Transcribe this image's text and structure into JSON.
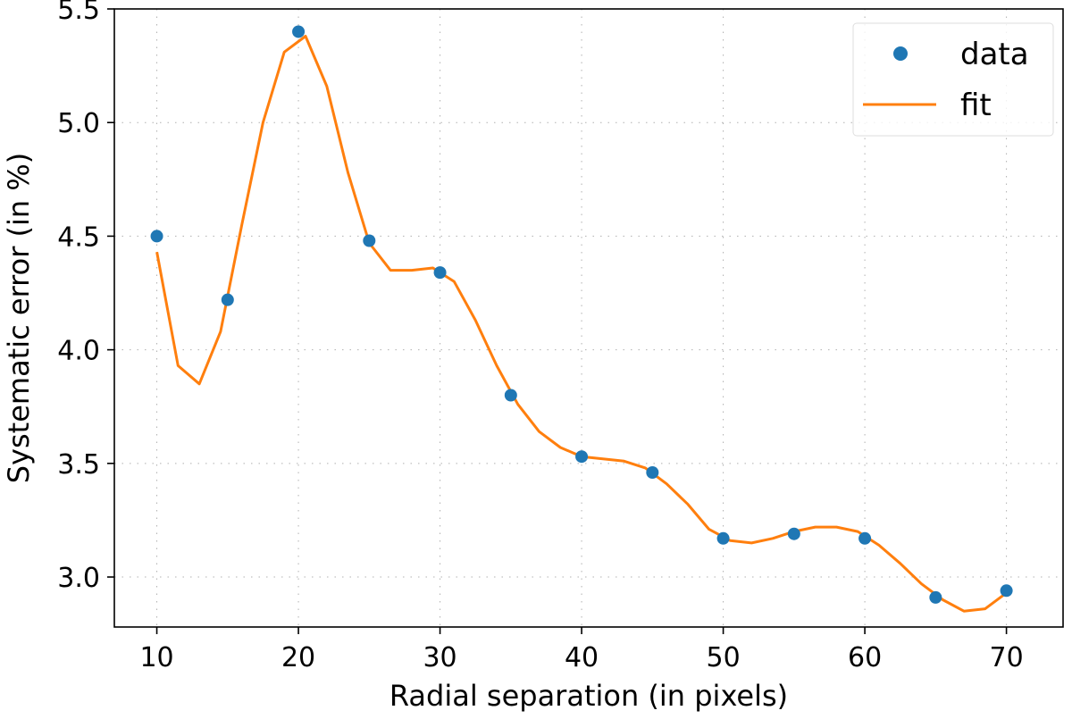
{
  "colors": {
    "data": "#1f77b4",
    "fit": "#ff7f0e",
    "grid": "#b0b0b0",
    "axis": "#000000",
    "legend_border": "#dddddd"
  },
  "chart_data": {
    "type": "scatter",
    "title": "",
    "xlabel": "Radial separation (in pixels)",
    "ylabel": "Systematic error (in %)",
    "xlim": [
      7,
      74
    ],
    "ylim": [
      2.78,
      5.5
    ],
    "xticks": [
      10,
      20,
      30,
      40,
      50,
      60,
      70
    ],
    "xtick_labels": [
      "10",
      "20",
      "30",
      "40",
      "50",
      "60",
      "70"
    ],
    "yticks": [
      3.0,
      3.5,
      4.0,
      4.5,
      5.0,
      5.5
    ],
    "ytick_labels": [
      "3.0",
      "3.5",
      "4.0",
      "4.5",
      "5.0",
      "5.5"
    ],
    "grid": "dotted",
    "legend_position": "top-right",
    "series": [
      {
        "name": "data",
        "style": "markers",
        "x": [
          10,
          15,
          20,
          25,
          30,
          35,
          40,
          45,
          50,
          55,
          60,
          65,
          70
        ],
        "y": [
          4.5,
          4.22,
          5.4,
          4.48,
          4.34,
          3.8,
          3.53,
          3.46,
          3.17,
          3.19,
          3.17,
          2.91,
          2.94
        ]
      },
      {
        "name": "fit",
        "style": "line",
        "x": [
          10,
          11.5,
          13,
          14.5,
          16,
          17.5,
          19,
          20.5,
          22,
          23.5,
          25,
          26.5,
          28,
          29.5,
          31,
          32.5,
          34,
          35.5,
          37,
          38.5,
          40,
          41.5,
          43,
          44.5,
          46,
          47.5,
          49,
          50.5,
          52,
          53.5,
          55,
          56.5,
          58,
          59.5,
          61,
          62.5,
          64,
          65.5,
          67,
          68.5,
          70
        ],
        "y": [
          4.43,
          3.93,
          3.85,
          4.08,
          4.55,
          5.0,
          5.31,
          5.38,
          5.16,
          4.78,
          4.47,
          4.35,
          4.35,
          4.36,
          4.3,
          4.13,
          3.93,
          3.76,
          3.64,
          3.57,
          3.53,
          3.52,
          3.51,
          3.48,
          3.41,
          3.32,
          3.21,
          3.16,
          3.15,
          3.17,
          3.2,
          3.22,
          3.22,
          3.2,
          3.14,
          3.06,
          2.97,
          2.9,
          2.85,
          2.86,
          2.93
        ]
      }
    ]
  }
}
